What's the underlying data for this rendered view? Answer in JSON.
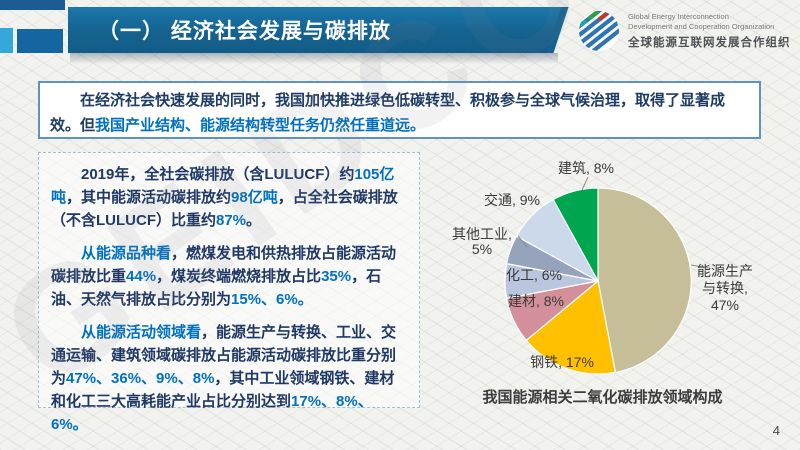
{
  "header": {
    "title": "（一） 经济社会发展与碳排放",
    "logo": {
      "line1": "Global Energy Interconnection",
      "line2": "Development and Cooperation Organization",
      "line3": "全球能源互联网发展合作组织"
    }
  },
  "summary": {
    "segments": [
      {
        "text": "在经济社会快速发展的同时，我国加快推进绿色低碳转型、积极参与全球气候治理，取得了显著成效。",
        "highlight": false
      },
      {
        "text": "但",
        "highlight": false
      },
      {
        "text": "我国产业结构、能源结构转型任务仍然任重道远。",
        "highlight": true
      }
    ]
  },
  "panel": {
    "paragraphs": [
      {
        "segments": [
          {
            "text": "2019年，全社会碳排放（含LULUCF）约",
            "highlight": false
          },
          {
            "text": "105亿吨",
            "highlight": true
          },
          {
            "text": "，其中能源活动碳排放约",
            "highlight": false
          },
          {
            "text": "98亿吨",
            "highlight": true
          },
          {
            "text": "，占全社会碳排放（不含LULUCF）比重约",
            "highlight": false
          },
          {
            "text": "87%",
            "highlight": true
          },
          {
            "text": "。",
            "highlight": false
          }
        ]
      },
      {
        "segments": [
          {
            "text": "从能源品种看",
            "highlight": true
          },
          {
            "text": "，燃煤发电和供热排放占能源活动碳排放比重",
            "highlight": false
          },
          {
            "text": "44%",
            "highlight": true
          },
          {
            "text": "，煤炭终端燃烧排放占比",
            "highlight": false
          },
          {
            "text": "35%",
            "highlight": true
          },
          {
            "text": "，石油、天然气排放占比分别为",
            "highlight": false
          },
          {
            "text": "15%、6%。",
            "highlight": true
          }
        ]
      },
      {
        "segments": [
          {
            "text": "从能源活动领域看",
            "highlight": true
          },
          {
            "text": "，能源生产与转换、工业、交通运输、建筑领域碳排放占能源活动碳排放比重分别为",
            "highlight": false
          },
          {
            "text": "47%、36%、9%、8%",
            "highlight": true
          },
          {
            "text": "，其中工业领域钢铁、建材和化工三大高耗能产业占比分别达到",
            "highlight": false
          },
          {
            "text": "17%、8%、6%。",
            "highlight": true
          }
        ]
      }
    ]
  },
  "chart_data": {
    "type": "pie",
    "title": "我国能源相关二氧化碳排放领域构成",
    "start_angle_deg": 0,
    "direction": "clockwise",
    "segments": [
      {
        "label": "能源生产与转换",
        "value": 47,
        "color": "#C6BD99"
      },
      {
        "label": "钢铁",
        "value": 17,
        "color": "#FFC000"
      },
      {
        "label": "建材",
        "value": 8,
        "color": "#D4909A"
      },
      {
        "label": "化工",
        "value": 6,
        "color": "#B9C6DE"
      },
      {
        "label": "其他工业",
        "value": 5,
        "color": "#95A3BD"
      },
      {
        "label": "交通",
        "value": 9,
        "color": "#CBD9EB"
      },
      {
        "label": "建筑",
        "value": 8,
        "color": "#00A550"
      }
    ]
  },
  "footer": {
    "page_number": "4"
  },
  "theme": {
    "header_bar_color": "#15628F",
    "highlight_blue": "#0070C0",
    "dark_text": "#1F3864",
    "watermark_text": "GEIDCO"
  }
}
